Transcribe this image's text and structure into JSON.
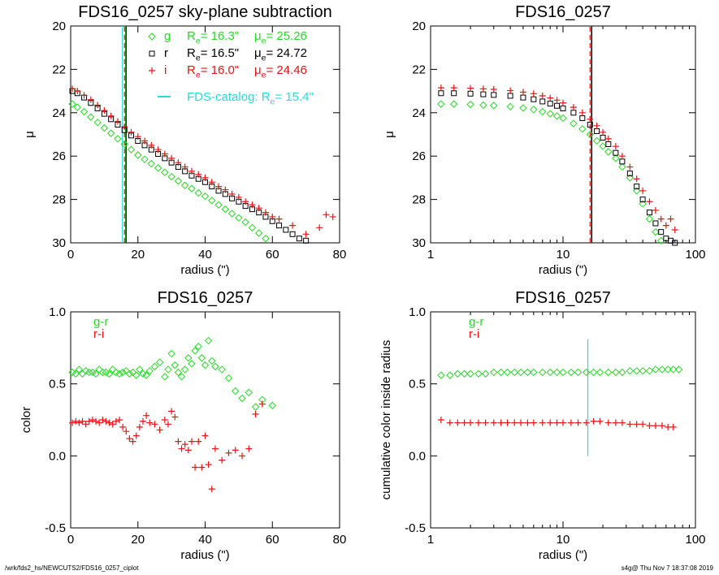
{
  "footer": {
    "path": "/wrk/fds2_hs/NEWCUTS2/FDS16_0257_ciplot",
    "stamp": "s4g@  Thu Nov  7 18:37:08 2019"
  },
  "colors": {
    "g": "#22dd22",
    "r": "#000000",
    "i": "#ee1111",
    "catalog": "#22dddd"
  },
  "chart_data": [
    {
      "id": "p1",
      "type": "scatter",
      "title": "FDS16_0257 sky-plane subtraction",
      "xlabel": "radius (\")",
      "ylabel": "μ",
      "xscale": "linear",
      "xlim": [
        0,
        80
      ],
      "ylim": [
        30,
        20
      ],
      "xticks": [
        0,
        20,
        40,
        60,
        80
      ],
      "yticks": [
        20,
        22,
        24,
        26,
        28,
        30
      ],
      "legend": [
        {
          "marker": "diamond",
          "band": "g",
          "re": "R_e= 16.3\"",
          "mu": "μ_e= 25.26"
        },
        {
          "marker": "square",
          "band": "r",
          "re": "R_e= 16.5\"",
          "mu": "μ_e= 24.72"
        },
        {
          "marker": "plus",
          "band": "i",
          "re": "R_e= 16.0\"",
          "mu": "μ_e= 24.46"
        }
      ],
      "catalog_legend": "FDS-catalog: R_e=  15.4\"",
      "vlines": [
        {
          "x": 15.4,
          "band": "catalog",
          "style": "solid"
        },
        {
          "x": 16.3,
          "band": "g",
          "style": "solid"
        },
        {
          "x": 16.5,
          "band": "r",
          "style": "solid"
        },
        {
          "x": 16.0,
          "band": "i",
          "style": "dashed"
        }
      ],
      "series": [
        {
          "band": "g",
          "marker": "diamond",
          "x": [
            0.5,
            2,
            4,
            6,
            8,
            10,
            12,
            14,
            16,
            18,
            20,
            22,
            24,
            26,
            28,
            30,
            32,
            34,
            36,
            38,
            40,
            42,
            44,
            46,
            48,
            50,
            52,
            54,
            56,
            58
          ],
          "y": [
            23.6,
            23.75,
            23.95,
            24.2,
            24.45,
            24.7,
            24.95,
            25.2,
            25.45,
            25.7,
            25.95,
            26.15,
            26.35,
            26.55,
            26.75,
            26.95,
            27.15,
            27.35,
            27.5,
            27.7,
            27.85,
            28.05,
            28.25,
            28.45,
            28.65,
            28.85,
            29.05,
            29.3,
            29.55,
            29.8
          ]
        },
        {
          "band": "r",
          "marker": "square",
          "x": [
            0.5,
            2,
            4,
            6,
            8,
            10,
            12,
            14,
            16,
            18,
            20,
            22,
            24,
            26,
            28,
            30,
            32,
            34,
            36,
            38,
            40,
            42,
            44,
            46,
            48,
            50,
            52,
            54,
            56,
            58,
            60,
            62,
            64,
            66,
            68,
            70
          ],
          "y": [
            23.0,
            23.1,
            23.3,
            23.55,
            23.8,
            24.05,
            24.3,
            24.55,
            24.8,
            25.05,
            25.3,
            25.5,
            25.7,
            25.9,
            26.1,
            26.3,
            26.5,
            26.7,
            26.9,
            27.05,
            27.2,
            27.4,
            27.6,
            27.75,
            27.95,
            28.1,
            28.3,
            28.45,
            28.6,
            28.8,
            29.0,
            29.2,
            29.4,
            29.6,
            29.8,
            29.9
          ]
        },
        {
          "band": "i",
          "marker": "plus",
          "x": [
            0.5,
            2,
            4,
            6,
            8,
            10,
            12,
            14,
            16,
            18,
            20,
            22,
            24,
            26,
            28,
            30,
            32,
            34,
            36,
            38,
            40,
            42,
            44,
            46,
            48,
            50,
            52,
            54,
            56,
            58,
            60,
            62,
            66,
            70,
            74,
            76,
            78
          ],
          "y": [
            22.9,
            23.0,
            23.2,
            23.4,
            23.65,
            23.9,
            24.15,
            24.4,
            24.65,
            24.9,
            25.1,
            25.3,
            25.5,
            25.7,
            25.9,
            26.1,
            26.3,
            26.5,
            26.7,
            26.85,
            27.0,
            27.2,
            27.4,
            27.55,
            27.75,
            27.9,
            28.1,
            28.25,
            28.4,
            28.6,
            28.8,
            28.9,
            29.2,
            29.6,
            29.3,
            28.7,
            28.8
          ]
        }
      ]
    },
    {
      "id": "p2",
      "type": "scatter",
      "title": "FDS16_0257",
      "xlabel": "radius (\")",
      "ylabel": "μ",
      "xscale": "log",
      "xlim": [
        1,
        100
      ],
      "ylim": [
        30,
        20
      ],
      "xticks": [
        1,
        10,
        100
      ],
      "yticks": [
        20,
        22,
        24,
        26,
        28,
        30
      ],
      "vlines": [
        {
          "x": 16.3,
          "band": "g",
          "style": "solid"
        },
        {
          "x": 16.5,
          "band": "r",
          "style": "solid"
        },
        {
          "x": 16.0,
          "band": "i",
          "style": "dashed"
        }
      ],
      "series": [
        {
          "band": "g",
          "marker": "diamond",
          "x": [
            1.2,
            1.5,
            2,
            2.5,
            3,
            4,
            5,
            6,
            7,
            8,
            9,
            10,
            12,
            14,
            16,
            18,
            20,
            22,
            25,
            28,
            32,
            36,
            40,
            45,
            50,
            55
          ],
          "y": [
            23.6,
            23.6,
            23.62,
            23.65,
            23.67,
            23.72,
            23.78,
            23.85,
            23.95,
            24.05,
            24.15,
            24.25,
            24.5,
            24.75,
            25.0,
            25.3,
            25.55,
            25.8,
            26.1,
            26.5,
            27.0,
            27.6,
            28.2,
            28.9,
            29.5,
            29.9
          ]
        },
        {
          "band": "r",
          "marker": "square",
          "x": [
            1.2,
            1.5,
            2,
            2.5,
            3,
            4,
            5,
            6,
            7,
            8,
            9,
            10,
            12,
            14,
            16,
            18,
            20,
            22,
            25,
            28,
            32,
            36,
            40,
            45,
            50,
            55,
            60,
            65,
            70
          ],
          "y": [
            23.1,
            23.1,
            23.12,
            23.15,
            23.18,
            23.22,
            23.3,
            23.38,
            23.48,
            23.58,
            23.68,
            23.8,
            24.0,
            24.25,
            24.55,
            24.85,
            25.15,
            25.45,
            25.85,
            26.25,
            26.8,
            27.4,
            28.0,
            28.6,
            29.1,
            29.5,
            29.8,
            29.9,
            30.0
          ]
        },
        {
          "band": "i",
          "marker": "plus",
          "x": [
            1.2,
            1.5,
            2,
            2.5,
            3,
            4,
            5,
            6,
            7,
            8,
            9,
            10,
            12,
            14,
            16,
            18,
            20,
            22,
            25,
            28,
            32,
            36,
            40,
            45,
            50,
            55,
            60,
            65,
            70
          ],
          "y": [
            22.85,
            22.85,
            22.87,
            22.9,
            22.92,
            22.98,
            23.05,
            23.12,
            23.22,
            23.32,
            23.42,
            23.55,
            23.75,
            24.0,
            24.3,
            24.6,
            24.9,
            25.2,
            25.55,
            26.0,
            26.5,
            27.05,
            27.6,
            28.1,
            28.5,
            28.9,
            29.2,
            28.9,
            29.4
          ]
        }
      ]
    },
    {
      "id": "p3",
      "type": "scatter",
      "title": "FDS16_0257",
      "xlabel": "radius (\")",
      "ylabel": "color",
      "xscale": "linear",
      "xlim": [
        0,
        80
      ],
      "ylim": [
        -0.5,
        1.0
      ],
      "xticks": [
        0,
        20,
        40,
        60,
        80
      ],
      "yticks": [
        -0.5,
        0.0,
        0.5,
        1.0
      ],
      "ytick_labels": [
        "-0.5",
        "0.0",
        "0.5",
        "1.0"
      ],
      "legend": [
        {
          "label": "g-r",
          "band": "g"
        },
        {
          "label": "r-i",
          "band": "i"
        }
      ],
      "series": [
        {
          "name": "g-r",
          "band": "g",
          "marker": "diamond",
          "x": [
            0.5,
            1.5,
            2.5,
            3.5,
            4.5,
            5.5,
            6.5,
            7.5,
            8.5,
            9.5,
            10.5,
            11.5,
            12.5,
            13.5,
            14.5,
            15.5,
            16.5,
            17.5,
            18.5,
            19.5,
            20.5,
            21.5,
            22.5,
            23.5,
            25,
            26.5,
            28,
            29,
            30,
            31,
            32,
            33,
            34,
            35,
            36,
            37,
            38,
            39,
            40,
            41,
            42,
            43,
            45,
            47,
            49,
            51,
            53,
            55,
            57,
            60
          ],
          "y": [
            0.58,
            0.57,
            0.6,
            0.57,
            0.59,
            0.58,
            0.58,
            0.57,
            0.6,
            0.58,
            0.58,
            0.57,
            0.6,
            0.58,
            0.57,
            0.58,
            0.59,
            0.57,
            0.58,
            0.56,
            0.6,
            0.57,
            0.56,
            0.59,
            0.62,
            0.65,
            0.55,
            0.6,
            0.71,
            0.63,
            0.58,
            0.55,
            0.6,
            0.68,
            0.64,
            0.73,
            0.76,
            0.68,
            0.63,
            0.8,
            0.66,
            0.62,
            0.6,
            0.54,
            0.45,
            0.4,
            0.44,
            0.34,
            0.39,
            0.35
          ]
        },
        {
          "name": "r-i",
          "band": "i",
          "marker": "plus",
          "x": [
            0.5,
            1.5,
            2.5,
            3.5,
            4.5,
            5.5,
            6.5,
            7.5,
            8.5,
            9.5,
            10.5,
            11.5,
            12.5,
            13.5,
            14.5,
            15.5,
            16.5,
            17.5,
            18.5,
            19.5,
            20.5,
            21.5,
            22.5,
            23.5,
            25,
            26.5,
            28,
            29,
            30,
            31,
            32,
            33,
            34,
            35,
            36,
            37,
            38,
            39,
            40,
            41,
            42,
            43,
            45,
            47,
            49,
            51,
            53,
            55,
            57
          ],
          "y": [
            0.23,
            0.24,
            0.23,
            0.24,
            0.22,
            0.24,
            0.25,
            0.24,
            0.23,
            0.25,
            0.24,
            0.23,
            0.22,
            0.24,
            0.25,
            0.2,
            0.17,
            0.12,
            0.1,
            0.14,
            0.2,
            0.24,
            0.28,
            0.23,
            0.22,
            0.18,
            0.25,
            0.22,
            0.31,
            0.27,
            0.1,
            0.05,
            0.08,
            0.04,
            0.1,
            -0.08,
            0.1,
            -0.08,
            0.14,
            -0.06,
            -0.23,
            0.05,
            -0.03,
            0.02,
            0.04,
            0.0,
            0.05,
            0.29,
            0.36
          ]
        }
      ]
    },
    {
      "id": "p4",
      "type": "scatter",
      "title": "FDS16_0257",
      "xlabel": "radius (\")",
      "ylabel": "cumulative color inside radius",
      "xscale": "log",
      "xlim": [
        1,
        100
      ],
      "ylim": [
        -0.5,
        1.0
      ],
      "xticks": [
        1,
        10,
        100
      ],
      "yticks": [
        -0.5,
        0.0,
        0.5,
        1.0
      ],
      "ytick_labels": [
        "-0.5",
        "0.0",
        "0.5",
        "1.0"
      ],
      "legend": [
        {
          "label": "g-r",
          "band": "g"
        },
        {
          "label": "r-i",
          "band": "i"
        }
      ],
      "vlines": [
        {
          "x": 15.4,
          "band": "catalog",
          "style": "solid",
          "y0": -0.0,
          "y1": 0.81
        }
      ],
      "series": [
        {
          "name": "g-r",
          "band": "g",
          "marker": "diamond",
          "x": [
            1.2,
            1.4,
            1.6,
            1.8,
            2,
            2.3,
            2.6,
            3,
            3.4,
            3.8,
            4.3,
            4.8,
            5.4,
            6,
            7,
            8,
            9,
            10,
            11.5,
            13,
            15,
            17,
            19,
            22,
            25,
            28,
            32,
            36,
            40,
            45,
            50,
            56,
            62,
            68,
            75
          ],
          "y": [
            0.56,
            0.56,
            0.57,
            0.57,
            0.57,
            0.57,
            0.57,
            0.58,
            0.58,
            0.58,
            0.58,
            0.58,
            0.58,
            0.58,
            0.58,
            0.58,
            0.58,
            0.58,
            0.58,
            0.58,
            0.58,
            0.58,
            0.58,
            0.58,
            0.58,
            0.58,
            0.59,
            0.59,
            0.59,
            0.59,
            0.6,
            0.6,
            0.6,
            0.6,
            0.6
          ]
        },
        {
          "name": "r-i",
          "band": "i",
          "marker": "plus",
          "x": [
            1.2,
            1.4,
            1.6,
            1.8,
            2,
            2.3,
            2.6,
            3,
            3.4,
            3.8,
            4.3,
            4.8,
            5.4,
            6,
            7,
            8,
            9,
            10,
            11.5,
            13,
            15,
            17,
            19,
            22,
            25,
            28,
            32,
            36,
            40,
            45,
            50,
            56,
            62,
            68
          ],
          "y": [
            0.25,
            0.23,
            0.23,
            0.23,
            0.23,
            0.23,
            0.23,
            0.23,
            0.23,
            0.23,
            0.23,
            0.23,
            0.23,
            0.23,
            0.23,
            0.23,
            0.23,
            0.23,
            0.23,
            0.23,
            0.23,
            0.24,
            0.24,
            0.23,
            0.23,
            0.23,
            0.22,
            0.22,
            0.22,
            0.21,
            0.21,
            0.21,
            0.2,
            0.2
          ]
        }
      ]
    }
  ]
}
